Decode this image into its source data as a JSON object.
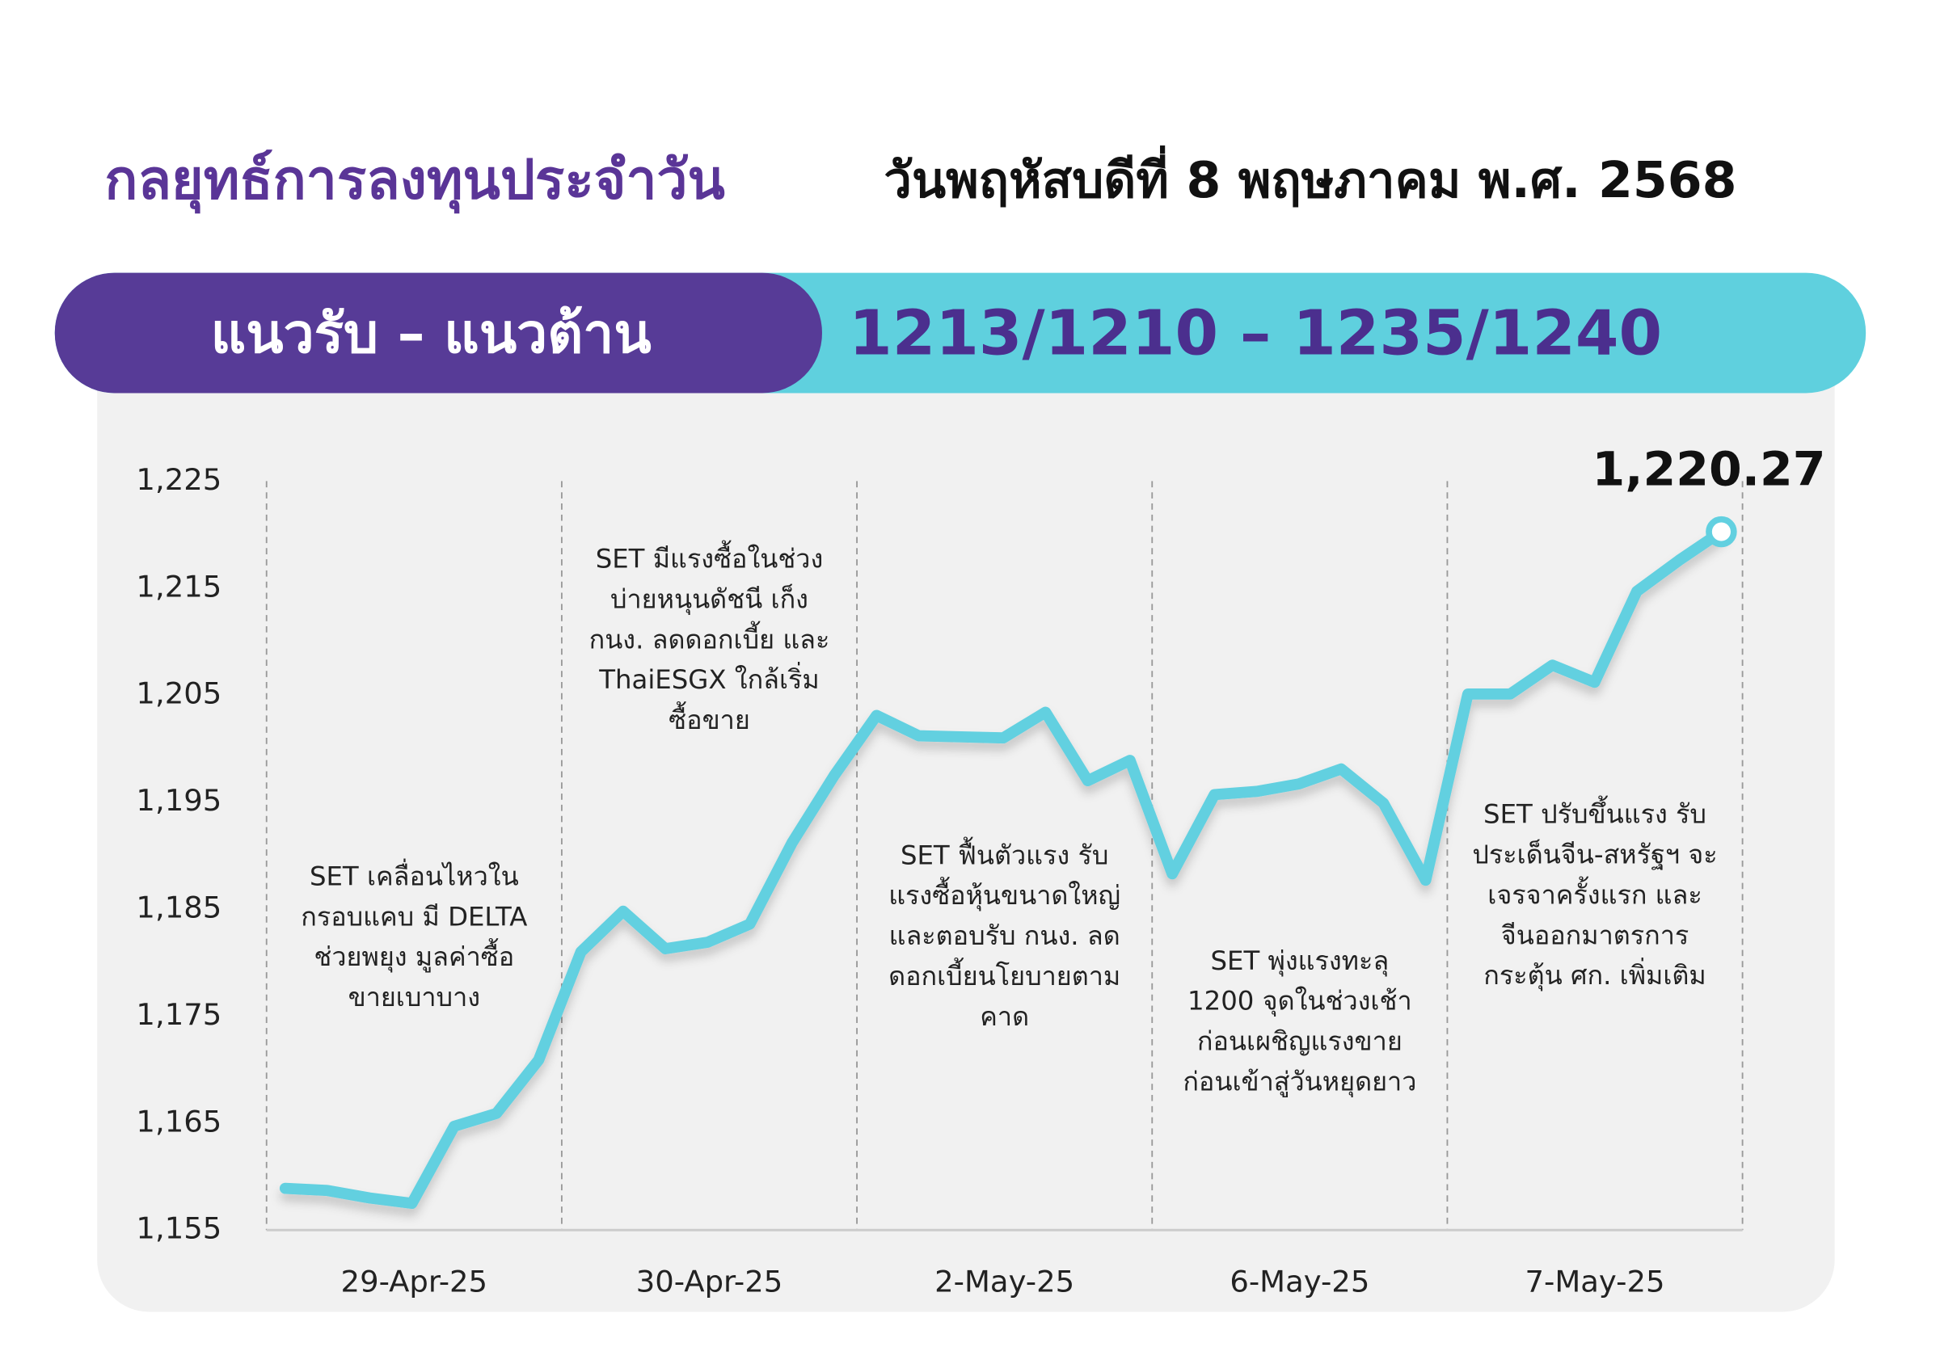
{
  "header": {
    "title": "กลยุทธ์การลงทุนประจำวัน",
    "date": "วันพฤหัสบดีที่ 8 พฤษภาคม พ.ศ. 2568"
  },
  "banner": {
    "label": "แนวรับ – แนวต้าน",
    "levels": "1213/1210 – 1235/1240"
  },
  "chart_data": {
    "type": "line",
    "x_labels": [
      "29-Apr-25",
      "30-Apr-25",
      "2-May-25",
      "6-May-25",
      "7-May-25"
    ],
    "values": [
      1158.9,
      1158.7,
      1158.0,
      1157.5,
      1164.7,
      1165.9,
      1170.9,
      1181.0,
      1184.8,
      1181.3,
      1181.9,
      1183.6,
      1191.2,
      1197.5,
      1203.1,
      1201.2,
      1201.1,
      1201.0,
      1203.4,
      1197.0,
      1198.9,
      1188.3,
      1195.7,
      1196.0,
      1196.7,
      1198.1,
      1194.9,
      1187.7,
      1205.1,
      1205.1,
      1207.8,
      1206.2,
      1214.7,
      1217.6,
      1220.27
    ],
    "value_labels": [
      null,
      null,
      null,
      null,
      null,
      null,
      null,
      null,
      null,
      null,
      null,
      null,
      null,
      null,
      null,
      null,
      null,
      null,
      null,
      null,
      null,
      null,
      null,
      null,
      null,
      null,
      null,
      null,
      null,
      null,
      null,
      null,
      null,
      null,
      "1,220.27"
    ],
    "color": "#62d0e0",
    "ylim": [
      1155,
      1225
    ],
    "yticks": [
      {
        "value": 1155,
        "label": "1,155"
      },
      {
        "value": 1165,
        "label": "1,165"
      },
      {
        "value": 1175,
        "label": "1,175"
      },
      {
        "value": 1185,
        "label": "1,185"
      },
      {
        "value": 1195,
        "label": "1,195"
      },
      {
        "value": 1205,
        "label": "1,205"
      },
      {
        "value": 1215,
        "label": "1,215"
      },
      {
        "value": 1225,
        "label": "1,225"
      }
    ],
    "annotations": [
      [
        "SET เคลื่อนไหวใน",
        "กรอบแคบ มี DELTA",
        "ช่วยพยุง มูลค่าซื้อ",
        "ขายเบาบาง"
      ],
      [
        "SET มีแรงซื้อในช่วง",
        "บ่ายหนุนดัชนี เก็ง",
        "กนง. ลดดอกเบี้ย และ",
        "ThaiESGX ใกล้เริ่ม",
        "ซื้อขาย"
      ],
      [
        "SET ฟื้นตัวแรง รับ",
        "แรงซื้อหุ้นขนาดใหญ่",
        "และตอบรับ กนง. ลด",
        "ดอกเบี้ยนโยบายตาม",
        "คาด"
      ],
      [
        "SET พุ่งแรงทะลุ",
        "1200 จุดในช่วงเช้า",
        "ก่อนเผชิญแรงขาย",
        "ก่อนเข้าสู่วันหยุดยาว"
      ],
      [
        "SET ปรับขึ้นแรง รับ",
        "ประเด็นจีน-สหรัฐฯ จะ",
        "เจรจาครั้งแรก และ",
        "จีนออกมาตรการ",
        "กระตุ้น ศก. เพิ่มเติม"
      ]
    ]
  }
}
